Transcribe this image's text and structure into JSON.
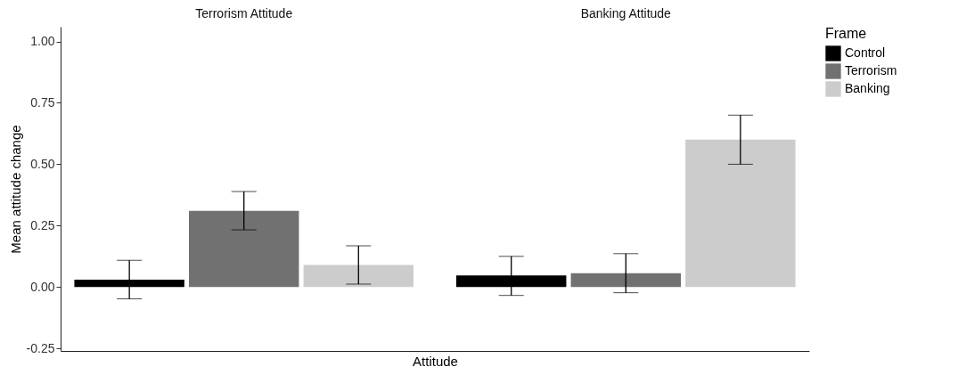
{
  "chart_data": {
    "type": "bar",
    "xlabel": "Attitude",
    "ylabel": "Mean attitude change",
    "legend_title": "Frame",
    "categories": [
      "Terrorism Attitude",
      "Banking Attitude"
    ],
    "series": [
      {
        "name": "Control",
        "color": "#000000",
        "values": [
          0.03,
          0.047
        ],
        "errors": [
          [
            -0.048,
            0.109
          ],
          [
            -0.034,
            0.125
          ]
        ]
      },
      {
        "name": "Terrorism",
        "color": "#717171",
        "values": [
          0.31,
          0.056
        ],
        "errors": [
          [
            0.233,
            0.389
          ],
          [
            -0.023,
            0.136
          ]
        ]
      },
      {
        "name": "Banking",
        "color": "#cccccc",
        "values": [
          0.09,
          0.6
        ],
        "errors": [
          [
            0.012,
            0.168
          ],
          [
            0.5,
            0.7
          ]
        ]
      }
    ],
    "ylim": [
      -0.26,
      1.06
    ],
    "yticks": [
      {
        "value": -0.25,
        "label": "-0.25"
      },
      {
        "value": 0,
        "label": "0.00"
      },
      {
        "value": 0.25,
        "label": "0.25"
      },
      {
        "value": 0.5,
        "label": "0.50"
      },
      {
        "value": 0.75,
        "label": "0.75"
      },
      {
        "value": 1,
        "label": "1.00"
      }
    ],
    "grid": false,
    "legend": "right"
  }
}
